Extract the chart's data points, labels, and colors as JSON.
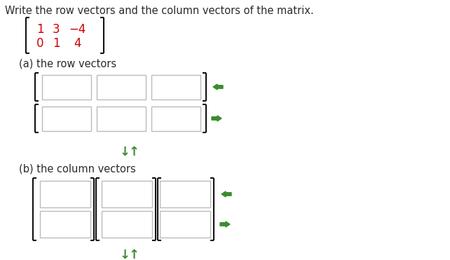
{
  "title_text": "Write the row vectors and the column vectors of the matrix.",
  "matrix_row1": [
    "1",
    "3",
    "−4"
  ],
  "matrix_row2": [
    "0",
    "1",
    "4"
  ],
  "matrix_color": "#cc0000",
  "label_a": "(a) the row vectors",
  "label_b": "(b) the column vectors",
  "background_color": "#ffffff",
  "text_color": "#2b2b2b",
  "bracket_color": "#111111",
  "box_edge_color": "#bbbbbb",
  "arrow_color": "#3a8c2f",
  "font_size_title": 10.5,
  "font_size_label": 10.5,
  "font_size_matrix": 12
}
